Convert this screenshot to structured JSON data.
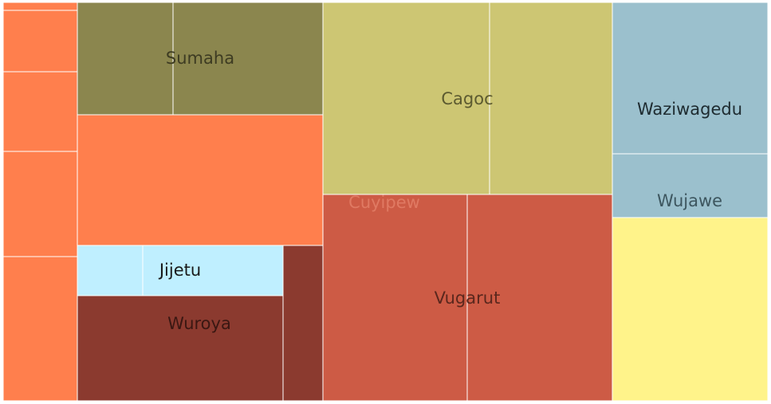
{
  "chart_data": {
    "type": "treemap",
    "title": "",
    "groups": [
      {
        "name": "",
        "color": "#ff7f4d",
        "value": 92.4,
        "children": [
          {
            "name": "",
            "value": 0.9
          },
          {
            "name": "",
            "value": 7.1
          },
          {
            "name": "",
            "value": 9.2
          },
          {
            "name": "",
            "value": 12.2
          },
          {
            "name": "",
            "value": 16.9
          },
          {
            "name": "",
            "value": 46.1
          }
        ]
      },
      {
        "name": "Sumaha",
        "color": "#8b864e",
        "value": 41.8,
        "label_color": "#3d3b22",
        "children": [
          {
            "name": "",
            "value": 16.6
          },
          {
            "name": "",
            "value": 25.2
          }
        ]
      },
      {
        "name": "Jijetu",
        "color": "#bfefff",
        "value": 15.3,
        "label_color": "#1a1a1a",
        "children": [
          {
            "name": "",
            "value": 4.9
          },
          {
            "name": "",
            "value": 10.4
          }
        ]
      },
      {
        "name": "Wuroya",
        "color": "#8b3a2f",
        "value": 43.5,
        "label_color": "#3a1712",
        "children": [
          {
            "name": "",
            "value": 33.8
          },
          {
            "name": "",
            "value": 9.7
          }
        ]
      },
      {
        "name": "Cagoc",
        "color": "#cdc673",
        "value": 87.0,
        "label_color": "#5c5a30",
        "children": [
          {
            "name": "",
            "value": 50.9
          },
          {
            "name": "",
            "value": 36.1
          }
        ]
      },
      {
        "name": "Vugarut",
        "color": "#cd5b45",
        "value": 92.5,
        "label_color": "#5a271d",
        "children": [
          {
            "name": "Cuyipew",
            "value": 46.6,
            "label_color": "#e07a63"
          },
          {
            "name": "",
            "value": 45.9
          }
        ]
      },
      {
        "name": "Waziwagedu",
        "color": "#9bc0cd",
        "value": 37.5,
        "label_color": "#1e2b30",
        "children": [
          {
            "name": "",
            "value": 37.5
          }
        ]
      },
      {
        "name": "Wujawe",
        "color": "#9bc0cd",
        "value": 15.4,
        "label_color": "#3d565f",
        "children": [
          {
            "name": "",
            "value": 15.4
          }
        ]
      },
      {
        "name": "",
        "color": "#fff38a",
        "value": 46.2,
        "children": [
          {
            "name": "",
            "value": 46.2
          }
        ]
      }
    ]
  }
}
